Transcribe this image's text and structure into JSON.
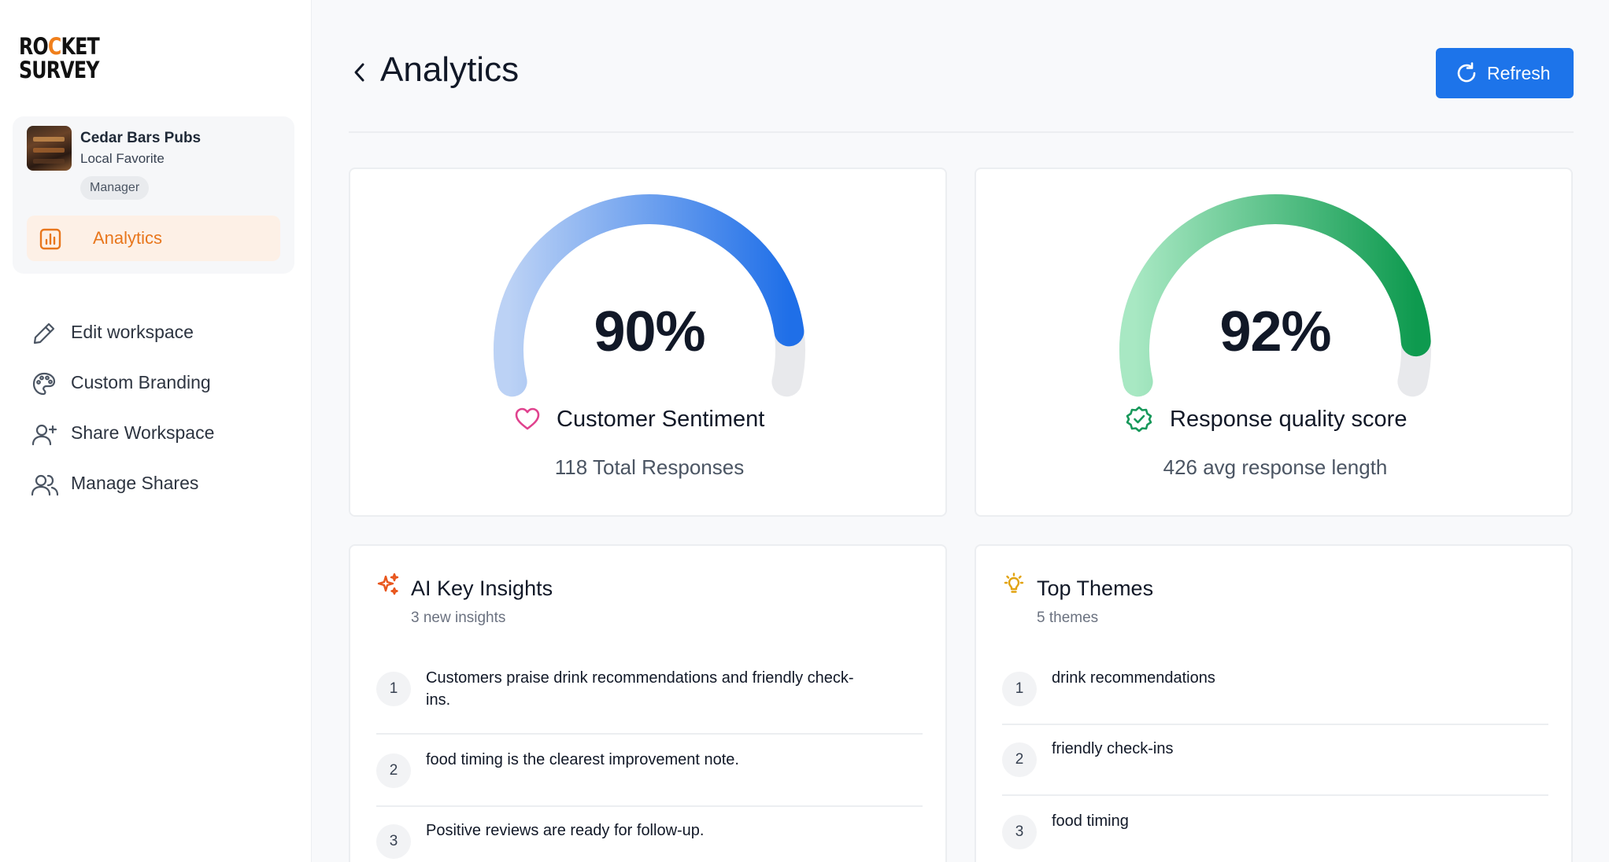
{
  "brand": {
    "logo_line1_a": "RO",
    "logo_line1_o": "C",
    "logo_line1_b": "KET",
    "logo_line2": "SURVEY"
  },
  "workspace": {
    "name": "Cedar Bars Pubs",
    "subtitle": "Local Favorite",
    "role": "Manager",
    "active_nav": "Analytics"
  },
  "nav": [
    {
      "label": "Edit workspace",
      "icon": "pencil-icon"
    },
    {
      "label": "Custom Branding",
      "icon": "palette-icon"
    },
    {
      "label": "Share Workspace",
      "icon": "user-plus-icon"
    },
    {
      "label": "Manage Shares",
      "icon": "users-icon"
    }
  ],
  "header": {
    "title": "Analytics",
    "refresh_label": "Refresh"
  },
  "gauges": [
    {
      "value_text": "90%",
      "value": 0.9,
      "title": "Customer Sentiment",
      "subtitle": "118 Total Responses",
      "icon": "heart-icon",
      "color_start": "#bcd2f5",
      "color_end": "#1f6fe8",
      "track": "#e8e9ec"
    },
    {
      "value_text": "92%",
      "value": 0.92,
      "title": "Response quality score",
      "subtitle": "426 avg response length",
      "icon": "badge-check-icon",
      "color_start": "#a8e8c3",
      "color_end": "#0e9a4f",
      "track": "#e8e9ec"
    }
  ],
  "insights": {
    "title": "AI Key Insights",
    "subtitle": "3 new insights",
    "items": [
      {
        "num": "1",
        "text": "Customers praise drink recommendations and friendly check-ins."
      },
      {
        "num": "2",
        "text": "food timing is the clearest improvement note."
      },
      {
        "num": "3",
        "text": "Positive reviews are ready for follow-up."
      }
    ]
  },
  "themes": {
    "title": "Top Themes",
    "subtitle": "5 themes",
    "items": [
      {
        "num": "1",
        "text": "drink recommendations"
      },
      {
        "num": "2",
        "text": "friendly check-ins"
      },
      {
        "num": "3",
        "text": "food timing"
      }
    ]
  },
  "colors": {
    "accent": "#1d74ea",
    "brand_orange": "#e8761c",
    "sparkle": "#e8561c",
    "bulb": "#e2a310"
  }
}
